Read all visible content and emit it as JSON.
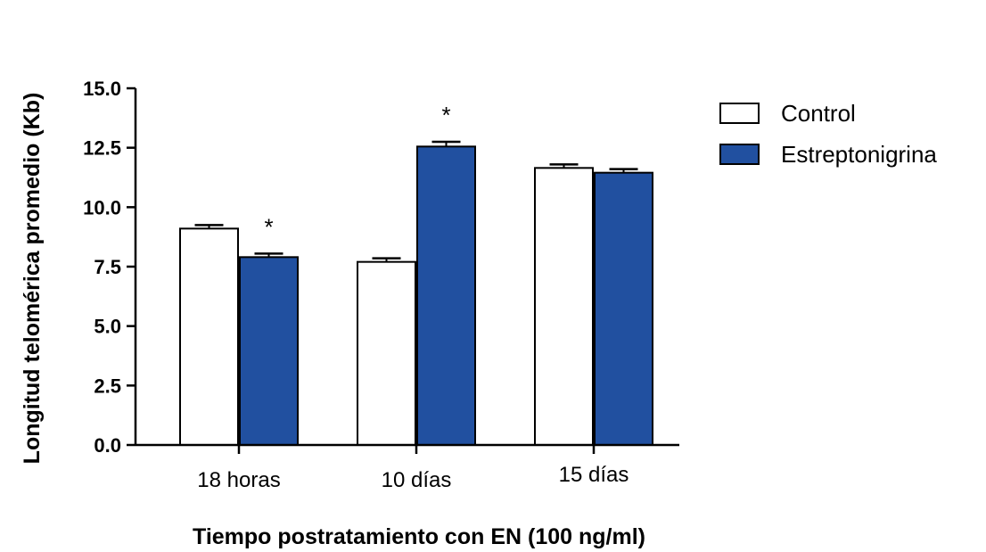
{
  "chart_data": {
    "type": "bar",
    "title": "",
    "xlabel": "Tiempo postratamiento con EN (100 ng/ml)",
    "ylabel": "Longitud telomérica promedio (Kb)",
    "ylim": [
      0,
      15
    ],
    "yticks": [
      "0.0",
      "2.5",
      "5.0",
      "7.5",
      "10.0",
      "12.5",
      "15.0"
    ],
    "categories": [
      "18 horas",
      "10 días",
      "15 días"
    ],
    "series": [
      {
        "name": "Control",
        "color": "#ffffff",
        "values": [
          9.1,
          7.7,
          11.65
        ],
        "errors": [
          0.15,
          0.15,
          0.15
        ],
        "significance": [
          "",
          "",
          ""
        ]
      },
      {
        "name": "Estreptonigrina",
        "color": "#2150a0",
        "values": [
          7.9,
          12.55,
          11.45
        ],
        "errors": [
          0.15,
          0.2,
          0.15
        ],
        "significance": [
          "*",
          "*",
          ""
        ]
      }
    ],
    "grid": false,
    "legend": "right"
  }
}
